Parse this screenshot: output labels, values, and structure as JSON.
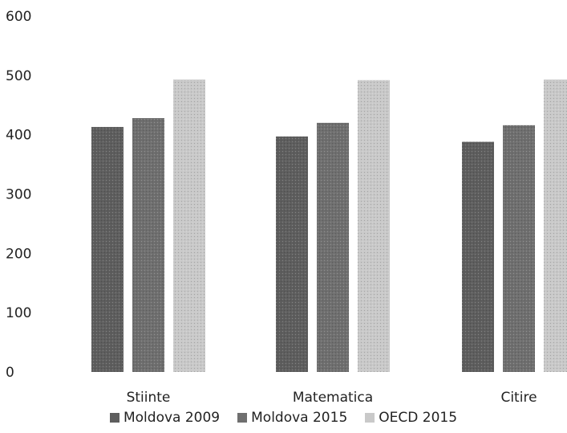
{
  "chart_data": {
    "type": "bar",
    "title": "",
    "xlabel": "",
    "ylabel": "",
    "ylim": [
      0,
      600
    ],
    "yticks": [
      0,
      100,
      200,
      300,
      400,
      500,
      600
    ],
    "grid": false,
    "legend_position": "bottom",
    "categories": [
      "Stiinte",
      "Matematica",
      "Citire"
    ],
    "series": [
      {
        "name": "Moldova 2009",
        "values": [
          413,
          397,
          388
        ],
        "color": "#5e5e5e"
      },
      {
        "name": "Moldova 2015",
        "values": [
          428,
          420,
          416
        ],
        "color": "#6f6f6f"
      },
      {
        "name": "OECD 2015",
        "values": [
          493,
          492,
          493
        ],
        "color": "#c9c9c9"
      }
    ]
  }
}
